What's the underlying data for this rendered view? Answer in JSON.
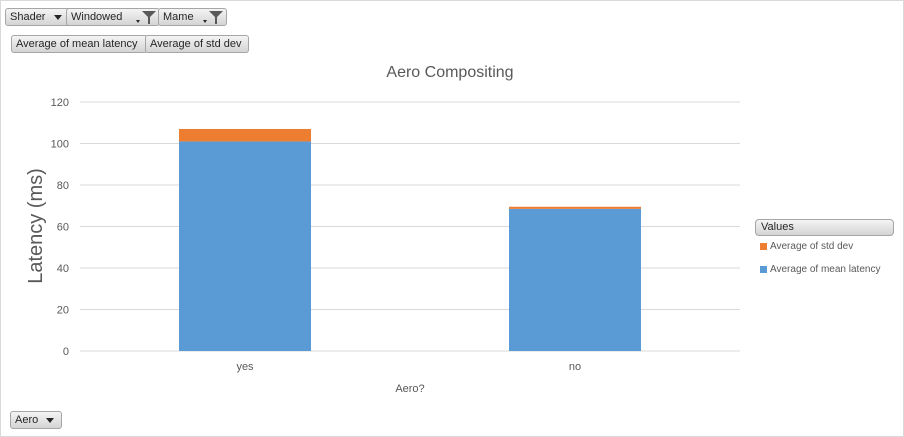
{
  "filters": {
    "shader": "Shader",
    "windowed": "Windowed",
    "mame": "Mame",
    "aero": "Aero"
  },
  "value_buttons": {
    "mean": "Average of mean latency",
    "std": "Average of std dev"
  },
  "legend": {
    "title": "Values",
    "items": [
      "Average of std dev",
      "Average of mean latency"
    ]
  },
  "colors": {
    "mean": "#5b9bd5",
    "std": "#ed7d31",
    "grid": "#d9d9d9"
  },
  "chart_data": {
    "type": "bar",
    "stacked": true,
    "title": "Aero Compositing",
    "xlabel": "Aero?",
    "ylabel": "Latency (ms)",
    "categories": [
      "yes",
      "no"
    ],
    "series": [
      {
        "name": "Average of mean latency",
        "values": [
          101,
          68.5
        ]
      },
      {
        "name": "Average of std dev",
        "values": [
          6,
          1
        ]
      }
    ],
    "ylim": [
      0,
      120
    ],
    "yticks": [
      0,
      20,
      40,
      60,
      80,
      100,
      120
    ],
    "grid": true,
    "legend_position": "right"
  }
}
